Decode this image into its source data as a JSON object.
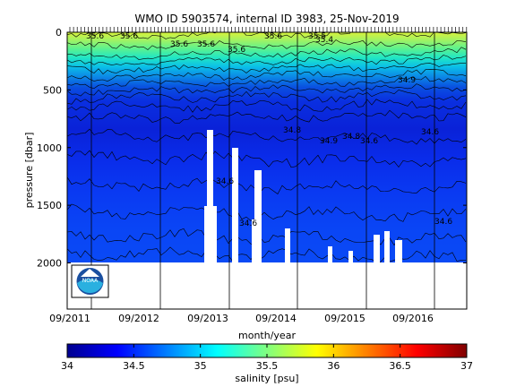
{
  "chart_data": {
    "type": "heatmap",
    "title": "WMO ID 5903574, internal ID 3983, 25-Nov-2019",
    "xlabel": "month/year",
    "ylabel": "pressure [dbar]",
    "x_ticks": [
      "09/2011",
      "09/2012",
      "09/2013",
      "09/2014",
      "09/2015",
      "09/2016"
    ],
    "y_ticks": [
      0,
      500,
      1000,
      1500,
      2000
    ],
    "ylim": [
      2400,
      0
    ],
    "colorbar": {
      "label": "salinity [psu]",
      "range": [
        34,
        37
      ],
      "ticks": [
        "34",
        "34.5",
        "35",
        "35.5",
        "36",
        "36.5",
        "37"
      ],
      "colormap": "jet"
    },
    "contour_labels": [
      "35.6",
      "35.6",
      "35.6",
      "35.6",
      "35.6",
      "35.6",
      "35.5",
      "35.4",
      "34.9",
      "34.8",
      "34.8",
      "34.9",
      "34.6",
      "34.6",
      "34.6",
      "34.6",
      "34.6"
    ],
    "logo": "NOAA"
  }
}
